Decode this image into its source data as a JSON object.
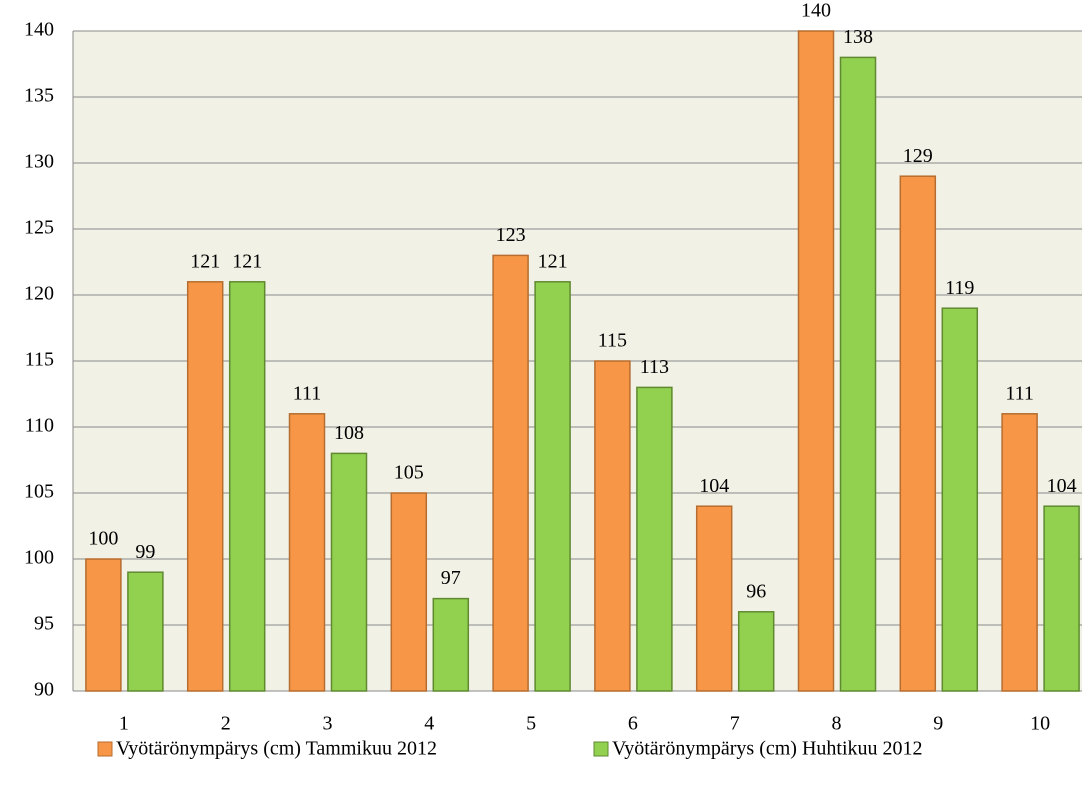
{
  "chart_data": {
    "type": "bar",
    "categories": [
      "1",
      "2",
      "3",
      "4",
      "5",
      "6",
      "7",
      "8",
      "9",
      "10"
    ],
    "series": [
      {
        "name": "Vyötärönympärys (cm) Tammikuu 2012",
        "color": "#f79646",
        "values": [
          100,
          121,
          111,
          105,
          123,
          115,
          104,
          140,
          129,
          111
        ]
      },
      {
        "name": "Vyötärönympärys (cm) Huhtikuu 2012",
        "color": "#92d050",
        "values": [
          99,
          121,
          108,
          97,
          121,
          113,
          96,
          138,
          119,
          104
        ]
      }
    ],
    "ylim": [
      90,
      140
    ],
    "yticks": [
      90,
      95,
      100,
      105,
      110,
      115,
      120,
      125,
      130,
      135,
      140
    ],
    "grid": true,
    "legend": "bottom"
  }
}
